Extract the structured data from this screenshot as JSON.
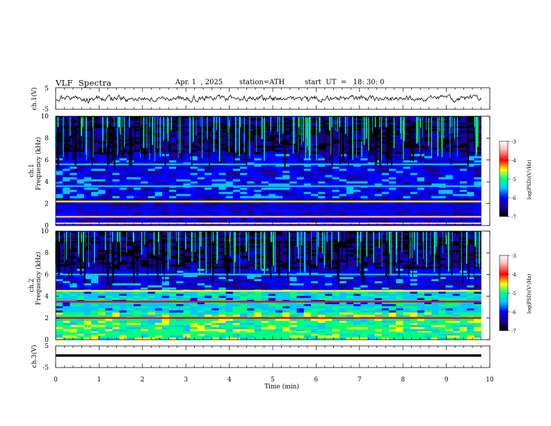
{
  "header": {
    "title": "VLF  Spectra",
    "date": "Apr. 1  , 2025",
    "station": "station=ATH",
    "start_ut": "start  UT  =   18: 30: 0"
  },
  "x_axis": {
    "label": "Time  (min)",
    "ticks": [
      "0",
      "1",
      "2",
      "3",
      "4",
      "5",
      "6",
      "7",
      "8",
      "9",
      "10"
    ]
  },
  "panels": {
    "ch1_wave": {
      "label": "ch.1(V)",
      "yticks": [
        "5",
        "-5"
      ]
    },
    "ch1_spec": {
      "label_top": "ch.1",
      "label_bottom": "Frequency  (kHz)",
      "yticks": [
        "10",
        "8",
        "6",
        "4",
        "2",
        "0"
      ]
    },
    "ch2_spec": {
      "label_top": "ch.2",
      "label_bottom": "Frequency  (kHz)",
      "yticks": [
        "10",
        "8",
        "6",
        "4",
        "2",
        "0"
      ]
    },
    "ch3_wave": {
      "label": "ch.3(V)",
      "yticks": [
        "5",
        "-5"
      ]
    }
  },
  "colorbar": {
    "label": "log(PSD)(V²/Hz)",
    "ticks": [
      "-3",
      "-4",
      "-5",
      "-6",
      "-7"
    ],
    "range": [
      -7,
      -3
    ],
    "colors": [
      "#000000",
      "#1a0090",
      "#0000ff",
      "#00c8ff",
      "#00ff80",
      "#ffff00",
      "#ff0000",
      "#ffc0c0",
      "#ffffff"
    ]
  },
  "chart_data": [
    {
      "type": "line",
      "panel": "ch.1(V)",
      "xlim": [
        0,
        10
      ],
      "ylim": [
        -5,
        5
      ],
      "series": [
        {
          "x_range": [
            0,
            9.8
          ],
          "mean": 0,
          "amplitude": 1
        }
      ]
    },
    {
      "type": "heatmap",
      "panel": "ch.1 Frequency (kHz)",
      "xlim": [
        0,
        10
      ],
      "ylim": [
        0,
        10
      ],
      "value_range": [
        -7,
        -3
      ],
      "bands": [
        {
          "freq": 0.2,
          "psd": -3.3
        },
        {
          "freq": 0.8,
          "psd": -3.5
        },
        {
          "freq": 1.6,
          "psd": -5.8
        },
        {
          "freq": 2.2,
          "psd": -4.6
        },
        {
          "freq": 3.6,
          "psd": -5.3
        },
        {
          "freq": 5.6,
          "psd": -5.4
        },
        {
          "freq": 9.0,
          "psd": -6.8
        }
      ]
    },
    {
      "type": "heatmap",
      "panel": "ch.2 Frequency (kHz)",
      "xlim": [
        0,
        10
      ],
      "ylim": [
        0,
        10
      ],
      "value_range": [
        -7,
        -3
      ],
      "bands": [
        {
          "freq": 0.6,
          "psd": -4.8
        },
        {
          "freq": 2.0,
          "psd": -3.8
        },
        {
          "freq": 3.5,
          "psd": -4.0
        },
        {
          "freq": 4.5,
          "psd": -4.5
        },
        {
          "freq": 6.0,
          "psd": -5.6
        },
        {
          "freq": 9.0,
          "psd": -6.8
        }
      ]
    },
    {
      "type": "line",
      "panel": "ch.3(V)",
      "xlim": [
        0,
        10
      ],
      "ylim": [
        -5,
        5
      ],
      "series": [
        {
          "x_range": [
            0,
            9.8
          ],
          "mean": -1,
          "amplitude": 0.1
        }
      ]
    }
  ]
}
